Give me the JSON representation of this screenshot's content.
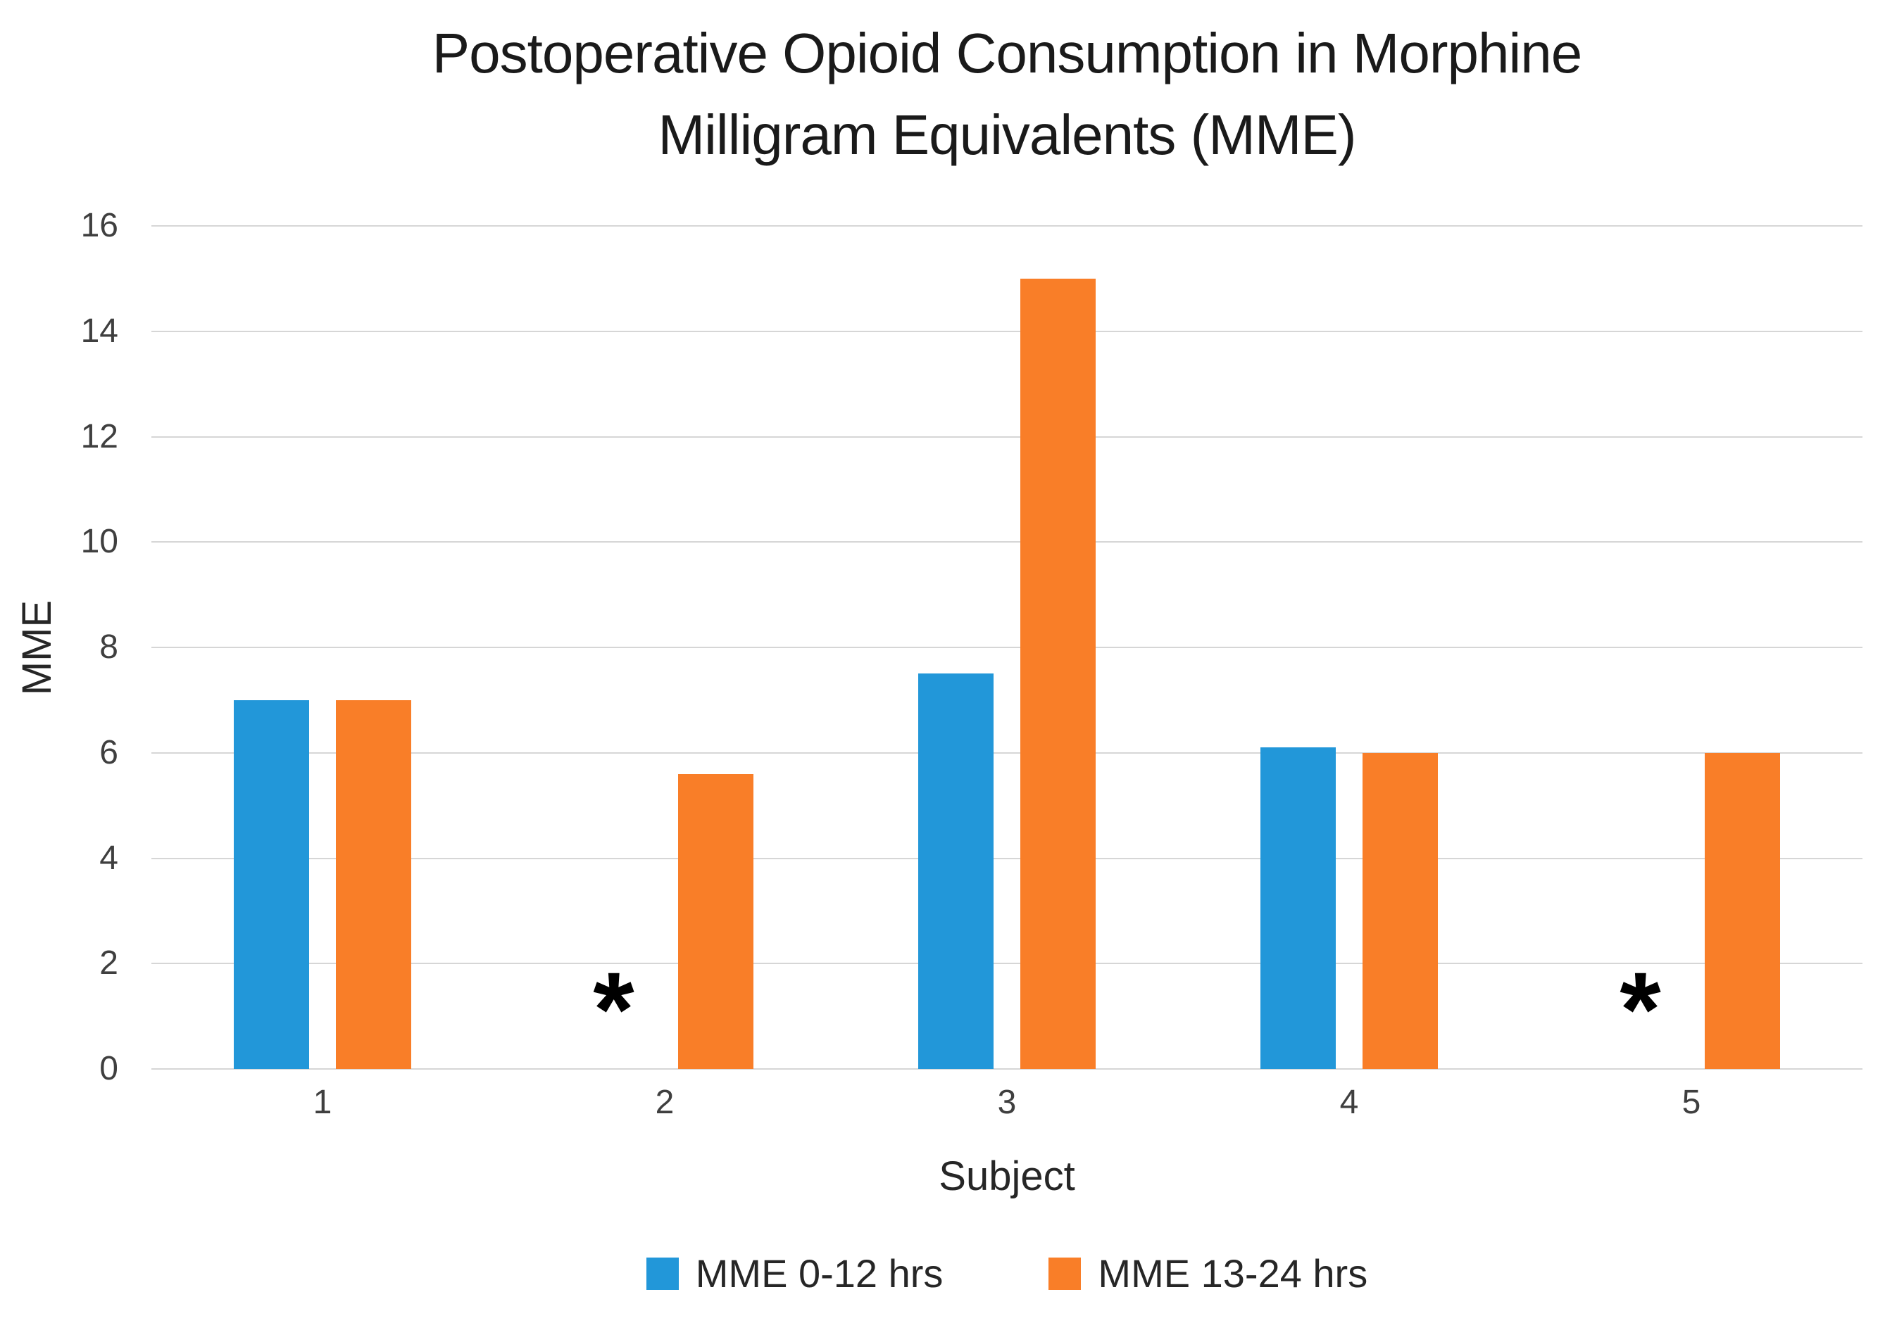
{
  "title": {
    "line1": "Postoperative Opioid Consumption in Morphine",
    "line2": "Milligram Equivalents (MME)"
  },
  "chart_data": {
    "type": "bar",
    "title": "Postoperative Opioid Consumption in Morphine Milligram Equivalents (MME)",
    "categories": [
      "1",
      "2",
      "3",
      "4",
      "5"
    ],
    "series": [
      {
        "name": "MME 0-12 hrs",
        "color": "#2297D9",
        "values": [
          7,
          null,
          7.5,
          6.1,
          null
        ]
      },
      {
        "name": "MME 13-24 hrs",
        "color": "#F97E28",
        "values": [
          7,
          5.6,
          15,
          6,
          6
        ]
      }
    ],
    "missing_marker": "*",
    "missing_points": [
      {
        "series": "MME 0-12 hrs",
        "category": "2"
      },
      {
        "series": "MME 0-12 hrs",
        "category": "5"
      }
    ],
    "xlabel": "Subject",
    "ylabel": "MME",
    "ylim": [
      0,
      16
    ],
    "ytick_step": 2,
    "grid": true,
    "gridline_color": "#D6D6D6",
    "legend_position": "bottom"
  }
}
